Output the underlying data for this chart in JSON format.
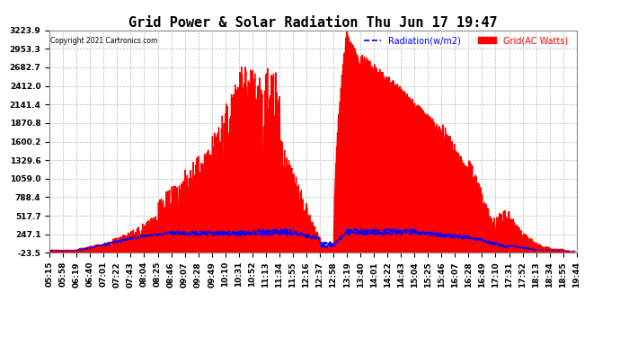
{
  "title": "Grid Power & Solar Radiation Thu Jun 17 19:47",
  "copyright": "Copyright 2021 Cartronics.com",
  "legend_radiation": "Radiation(w/m2)",
  "legend_grid": "Grid(AC Watts)",
  "yticks": [
    -23.5,
    247.1,
    517.7,
    788.4,
    1059.0,
    1329.6,
    1600.2,
    1870.8,
    2141.4,
    2412.0,
    2682.7,
    2953.3,
    3223.9
  ],
  "ylim": [
    -23.5,
    3223.9
  ],
  "background_color": "#ffffff",
  "plot_bg_color": "#ffffff",
  "grid_color": "#aaaaaa",
  "title_fontsize": 11,
  "tick_fontsize": 6.5,
  "xtick_labels": [
    "05:15",
    "05:58",
    "06:19",
    "06:40",
    "07:01",
    "07:22",
    "07:43",
    "08:04",
    "08:25",
    "08:46",
    "09:07",
    "09:28",
    "09:49",
    "10:10",
    "10:31",
    "10:52",
    "11:13",
    "11:34",
    "11:55",
    "12:16",
    "12:37",
    "12:58",
    "13:19",
    "13:40",
    "14:01",
    "14:22",
    "14:43",
    "15:04",
    "15:25",
    "15:46",
    "16:07",
    "16:28",
    "16:49",
    "17:10",
    "17:31",
    "17:52",
    "18:13",
    "18:34",
    "18:55",
    "19:44"
  ]
}
